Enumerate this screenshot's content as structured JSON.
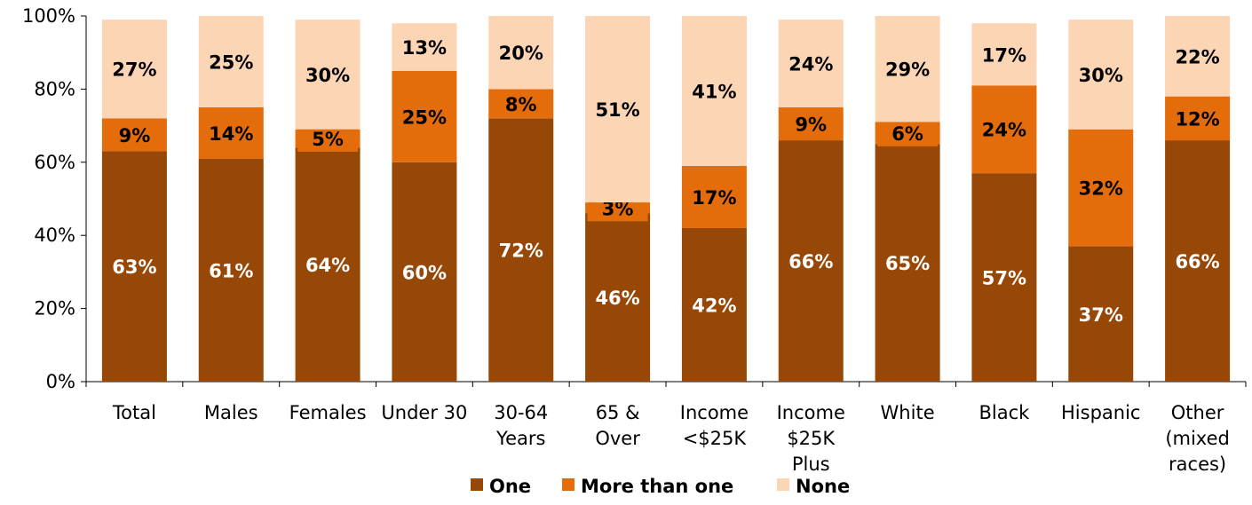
{
  "chart_data": {
    "type": "bar",
    "stacked": true,
    "title": "",
    "xlabel": "",
    "ylabel": "",
    "ylim": [
      0,
      100
    ],
    "y_ticks": [
      "0%",
      "20%",
      "40%",
      "60%",
      "80%",
      "100%"
    ],
    "categories": [
      [
        "Total"
      ],
      [
        "Males"
      ],
      [
        "Females"
      ],
      [
        "Under 30"
      ],
      [
        "30-64",
        "Years"
      ],
      [
        "65 &",
        "Over"
      ],
      [
        "Income",
        "<$25K"
      ],
      [
        "Income",
        "$25K",
        "Plus"
      ],
      [
        "White"
      ],
      [
        "Black"
      ],
      [
        "Hispanic"
      ],
      [
        "Other",
        "(mixed",
        "races)"
      ]
    ],
    "series": [
      {
        "name": "One",
        "color": "#974806",
        "values": [
          63,
          61,
          64,
          60,
          72,
          46,
          42,
          66,
          65,
          57,
          37,
          66
        ],
        "labels": [
          "63%",
          "61%",
          "64%",
          "60%",
          "72%",
          "46%",
          "42%",
          "66%",
          "65%",
          "57%",
          "37%",
          "66%"
        ]
      },
      {
        "name": "More than one",
        "color": "#E46C0A",
        "values": [
          9,
          14,
          5,
          25,
          8,
          3,
          17,
          9,
          6,
          24,
          32,
          12
        ],
        "labels": [
          "9%",
          "14%",
          "5%",
          "25%",
          "8%",
          "3%",
          "17%",
          "9%",
          "6%",
          "24%",
          "32%",
          "12%"
        ]
      },
      {
        "name": "None",
        "color": "#FCD5B5",
        "values": [
          27,
          25,
          30,
          13,
          20,
          51,
          41,
          24,
          29,
          17,
          30,
          22
        ],
        "labels": [
          "27%",
          "25%",
          "30%",
          "13%",
          "20%",
          "51%",
          "41%",
          "24%",
          "29%",
          "17%",
          "30%",
          "22%"
        ]
      }
    ],
    "legend": {
      "position": "bottom",
      "entries": [
        "One",
        "More than one",
        "None"
      ]
    },
    "grid": false
  }
}
